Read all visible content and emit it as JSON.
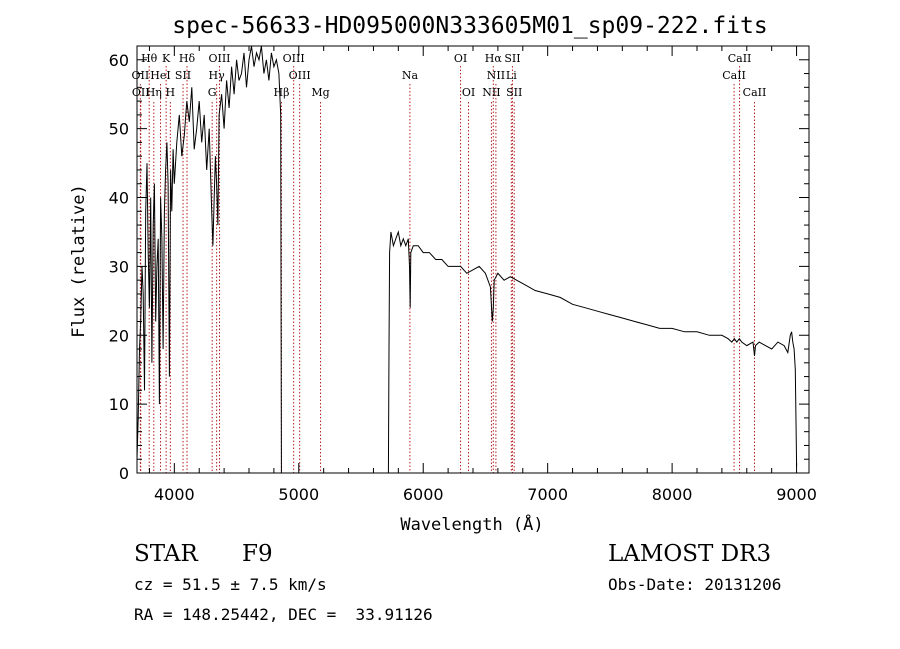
{
  "chart_data": {
    "type": "line",
    "title": "spec-56633-HD095000N333605M01_sp09-222.fits",
    "xlabel": "Wavelength (Å)",
    "ylabel": "Flux (relative)",
    "xlim": [
      3700,
      9100
    ],
    "ylim": [
      0,
      62
    ],
    "x_ticks": [
      4000,
      5000,
      6000,
      7000,
      8000,
      9000
    ],
    "y_ticks": [
      0,
      10,
      20,
      30,
      40,
      50,
      60
    ],
    "grid": false,
    "line_color": "#000000",
    "marker_color": "#b22222",
    "spectrum": {
      "x": [
        3700,
        3710,
        3720,
        3730,
        3740,
        3750,
        3760,
        3770,
        3780,
        3790,
        3800,
        3810,
        3820,
        3830,
        3840,
        3850,
        3860,
        3870,
        3880,
        3890,
        3900,
        3910,
        3920,
        3930,
        3940,
        3950,
        3960,
        3970,
        3980,
        3990,
        4000,
        4020,
        4040,
        4060,
        4080,
        4100,
        4120,
        4140,
        4160,
        4180,
        4200,
        4220,
        4240,
        4260,
        4280,
        4300,
        4310,
        4320,
        4330,
        4340,
        4350,
        4360,
        4380,
        4400,
        4420,
        4440,
        4460,
        4480,
        4500,
        4520,
        4540,
        4560,
        4580,
        4600,
        4620,
        4640,
        4660,
        4680,
        4700,
        4720,
        4740,
        4760,
        4780,
        4800,
        4820,
        4840,
        4855,
        4860,
        4865,
        4870,
        5720,
        5725,
        5730,
        5740,
        5760,
        5780,
        5800,
        5820,
        5840,
        5860,
        5880,
        5890,
        5895,
        5900,
        5920,
        5960,
        6000,
        6050,
        6100,
        6150,
        6200,
        6250,
        6300,
        6350,
        6400,
        6450,
        6500,
        6540,
        6555,
        6563,
        6570,
        6600,
        6650,
        6700,
        6750,
        6800,
        6900,
        7000,
        7100,
        7200,
        7300,
        7400,
        7500,
        7600,
        7700,
        7800,
        7900,
        8000,
        8100,
        8200,
        8300,
        8400,
        8450,
        8480,
        8500,
        8520,
        8540,
        8560,
        8600,
        8650,
        8662,
        8670,
        8700,
        8750,
        8800,
        8850,
        8900,
        8930,
        8950,
        8960,
        8970,
        8980,
        8990,
        9000
      ],
      "y": [
        2,
        8,
        18,
        22,
        30,
        26,
        12,
        38,
        45,
        32,
        24,
        40,
        16,
        36,
        42,
        22,
        30,
        34,
        10,
        40,
        34,
        18,
        38,
        44,
        48,
        42,
        14,
        44,
        38,
        47,
        42,
        48,
        52,
        46,
        49,
        54,
        51,
        56,
        47,
        50,
        54,
        48,
        52,
        44,
        50,
        38,
        33,
        40,
        46,
        42,
        36,
        52,
        55,
        50,
        57,
        53,
        59,
        55,
        60,
        57,
        58,
        61,
        56,
        60,
        62,
        59,
        61,
        60,
        62,
        58,
        60,
        57,
        61,
        59,
        60,
        58,
        52,
        0,
        0,
        0,
        0,
        18,
        32,
        35,
        33,
        34,
        35,
        33,
        34,
        33,
        34,
        30,
        24,
        32,
        33,
        33,
        32,
        32,
        31,
        31,
        30,
        30,
        30,
        29,
        29.5,
        30,
        29,
        27,
        22,
        24,
        28,
        29,
        28,
        28.5,
        28,
        27.5,
        26.5,
        26,
        25.5,
        24.5,
        24,
        23.5,
        23,
        22.5,
        22,
        21.5,
        21,
        21,
        20.5,
        20.5,
        20,
        20,
        19.5,
        19,
        19.5,
        19,
        19.5,
        19,
        18.5,
        19,
        17,
        18.5,
        19,
        18.5,
        18,
        19,
        18.5,
        17.5,
        20,
        20.5,
        19,
        18,
        15,
        1
      ]
    },
    "lines": [
      {
        "label": "Hθ",
        "x": 3798,
        "row": 0
      },
      {
        "label": "K",
        "x": 3934,
        "row": 0
      },
      {
        "label": "Hδ",
        "x": 4102,
        "row": 0
      },
      {
        "label": "OIII",
        "x": 4363,
        "row": 0
      },
      {
        "label": "OIII",
        "x": 4959,
        "row": 0
      },
      {
        "label": "OI",
        "x": 6300,
        "row": 0
      },
      {
        "label": "Hα",
        "x": 6563,
        "row": 0
      },
      {
        "label": "SII",
        "x": 6717,
        "row": 0
      },
      {
        "label": "CaII",
        "x": 8542,
        "row": 0
      },
      {
        "label": "OII",
        "x": 3727,
        "row": 1
      },
      {
        "label": "HeI",
        "x": 3889,
        "row": 1
      },
      {
        "label": "SII",
        "x": 4070,
        "row": 1
      },
      {
        "label": "Hγ",
        "x": 4340,
        "row": 1
      },
      {
        "label": "OIII",
        "x": 5007,
        "row": 1
      },
      {
        "label": "Na",
        "x": 5893,
        "row": 1
      },
      {
        "label": "NII",
        "x": 6584,
        "row": 1
      },
      {
        "label": "Li",
        "x": 6708,
        "row": 1
      },
      {
        "label": "CaII",
        "x": 8498,
        "row": 1
      },
      {
        "label": "OII",
        "x": 3730,
        "row": 2
      },
      {
        "label": "Hη",
        "x": 3835,
        "row": 2
      },
      {
        "label": "H",
        "x": 3968,
        "row": 2
      },
      {
        "label": "G",
        "x": 4304,
        "row": 2
      },
      {
        "label": "Hβ",
        "x": 4861,
        "row": 2
      },
      {
        "label": "Mg",
        "x": 5175,
        "row": 2
      },
      {
        "label": "OI",
        "x": 6364,
        "row": 2
      },
      {
        "label": "NII",
        "x": 6548,
        "row": 2
      },
      {
        "label": "SII",
        "x": 6731,
        "row": 2
      },
      {
        "label": "CaII",
        "x": 8662,
        "row": 2
      }
    ]
  },
  "info": {
    "class_label": "STAR",
    "subclass": "F9",
    "survey": "LAMOST DR3",
    "cz": "cz = 51.5 ± 7.5 km/s",
    "obs_date": "Obs-Date: 20131206",
    "radec": "RA = 148.25442, DEC =  33.91126"
  }
}
